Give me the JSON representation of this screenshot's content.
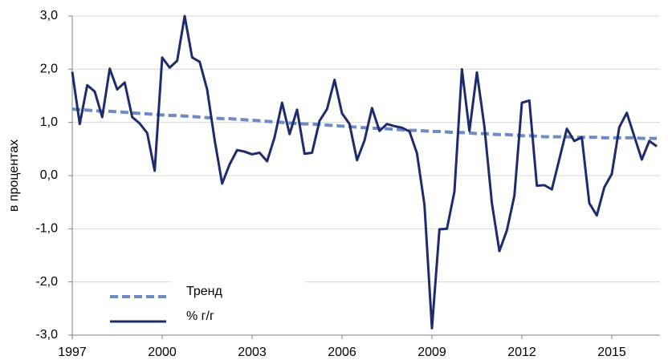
{
  "chart_data": {
    "type": "line",
    "y_label": "в процентах",
    "x": [
      1997,
      1997.25,
      1997.5,
      1997.75,
      1998,
      1998.25,
      1998.5,
      1998.75,
      1999,
      1999.25,
      1999.5,
      1999.75,
      2000,
      2000.25,
      2000.5,
      2000.75,
      2001,
      2001.25,
      2001.5,
      2001.75,
      2002,
      2002.25,
      2002.5,
      2002.75,
      2003,
      2003.25,
      2003.5,
      2003.75,
      2004,
      2004.25,
      2004.5,
      2004.75,
      2005,
      2005.25,
      2005.5,
      2005.75,
      2006,
      2006.25,
      2006.5,
      2006.75,
      2007,
      2007.25,
      2007.5,
      2007.75,
      2008,
      2008.25,
      2008.5,
      2008.75,
      2009,
      2009.25,
      2009.5,
      2009.75,
      2010,
      2010.25,
      2010.5,
      2010.75,
      2011,
      2011.25,
      2011.5,
      2011.75,
      2012,
      2012.25,
      2012.5,
      2012.75,
      2013,
      2013.25,
      2013.5,
      2013.75,
      2014,
      2014.25,
      2014.5,
      2014.75,
      2015,
      2015.25,
      2015.5,
      2015.75,
      2016,
      2016.25,
      2016.5
    ],
    "series": [
      {
        "name": "Тренд",
        "color": "#6b8cc4",
        "dashed": true,
        "values": [
          1.25,
          1.24,
          1.23,
          1.22,
          1.21,
          1.21,
          1.2,
          1.19,
          1.18,
          1.17,
          1.16,
          1.15,
          1.14,
          1.13,
          1.13,
          1.12,
          1.11,
          1.1,
          1.09,
          1.08,
          1.07,
          1.07,
          1.06,
          1.05,
          1.04,
          1.03,
          1.02,
          1.01,
          1.0,
          0.99,
          0.98,
          0.97,
          0.97,
          0.96,
          0.95,
          0.94,
          0.93,
          0.92,
          0.91,
          0.9,
          0.89,
          0.89,
          0.88,
          0.87,
          0.86,
          0.85,
          0.85,
          0.84,
          0.83,
          0.83,
          0.82,
          0.81,
          0.81,
          0.8,
          0.79,
          0.79,
          0.78,
          0.77,
          0.77,
          0.76,
          0.75,
          0.75,
          0.74,
          0.73,
          0.73,
          0.73,
          0.73,
          0.72,
          0.72,
          0.72,
          0.72,
          0.71,
          0.71,
          0.71,
          0.71,
          0.71,
          0.7,
          0.7,
          0.7
        ]
      },
      {
        "name": "% г/г",
        "color": "#1c2c6e",
        "dashed": false,
        "values": [
          1.95,
          0.97,
          1.7,
          1.58,
          1.1,
          2.01,
          1.62,
          1.75,
          1.1,
          0.98,
          0.8,
          0.09,
          2.22,
          2.03,
          2.16,
          3.0,
          2.22,
          2.14,
          1.62,
          0.67,
          -0.15,
          0.21,
          0.48,
          0.45,
          0.4,
          0.43,
          0.27,
          0.72,
          1.37,
          0.78,
          1.24,
          0.41,
          0.43,
          1.03,
          1.25,
          1.8,
          1.17,
          0.97,
          0.29,
          0.66,
          1.27,
          0.84,
          0.97,
          0.93,
          0.9,
          0.83,
          0.42,
          -0.55,
          -2.87,
          -1.01,
          -1.0,
          -0.3,
          2.0,
          0.84,
          1.94,
          0.92,
          -0.52,
          -1.42,
          -1.03,
          -0.38,
          1.37,
          1.41,
          -0.19,
          -0.18,
          -0.26,
          0.31,
          0.88,
          0.65,
          0.72,
          -0.52,
          -0.75,
          -0.22,
          0.03,
          0.91,
          1.18,
          0.74,
          0.3,
          0.65,
          0.55
        ]
      }
    ],
    "xlim": [
      1997,
      2016.5
    ],
    "xticks": [
      1997,
      2000,
      2003,
      2006,
      2009,
      2012,
      2015
    ],
    "ylim": [
      -3,
      3
    ],
    "yticks": [
      {
        "value": -3,
        "label": "-3,0"
      },
      {
        "value": -2,
        "label": "-2,0"
      },
      {
        "value": -1,
        "label": "-1,0"
      },
      {
        "value": 0,
        "label": "0,0"
      },
      {
        "value": 1,
        "label": "1,0"
      },
      {
        "value": 2,
        "label": "2,0"
      },
      {
        "value": 3,
        "label": "3,0"
      }
    ],
    "grid": true,
    "legend": "lower left"
  }
}
